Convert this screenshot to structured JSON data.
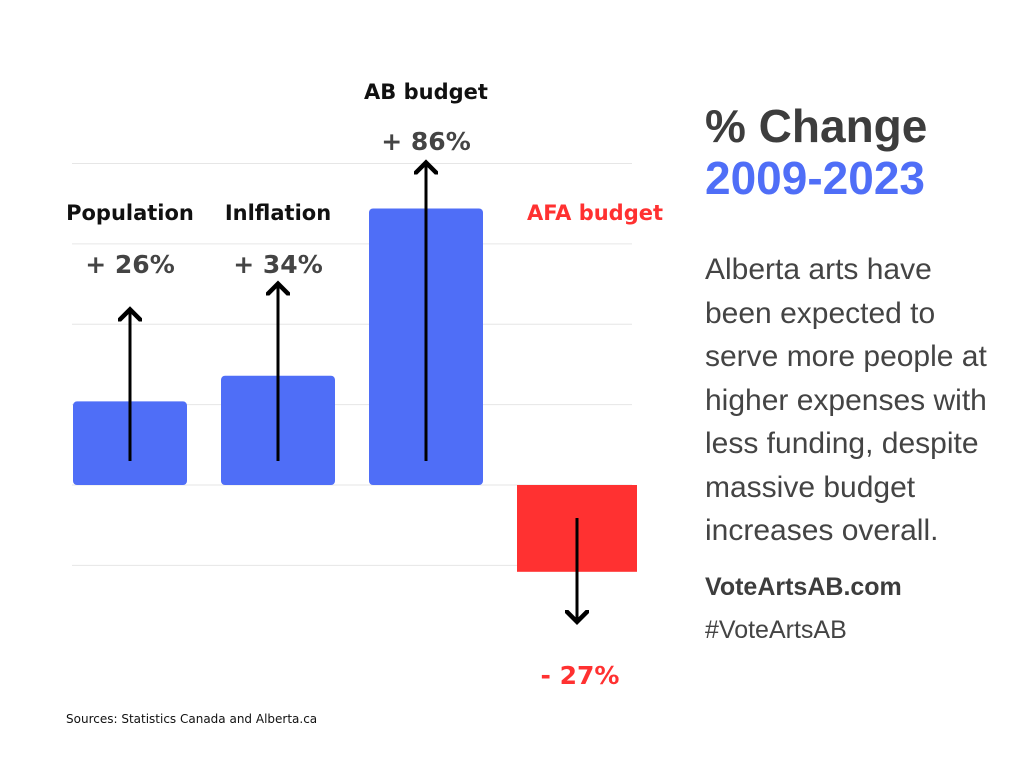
{
  "chart_data": {
    "type": "bar",
    "categories": [
      "Population",
      "Inlflation",
      "AB budget",
      "AFA budget"
    ],
    "values": [
      26,
      34,
      86,
      -27
    ],
    "value_labels": [
      "+ 26%",
      "+ 34%",
      "+ 86%",
      "- 27%"
    ],
    "ylim": [
      -50,
      100
    ],
    "grid": true,
    "colors": [
      "#4f6ef7",
      "#4f6ef7",
      "#4f6ef7",
      "#ff3131"
    ],
    "label_colors": [
      "#111111",
      "#111111",
      "#111111",
      "#ff3131"
    ],
    "value_label_colors": [
      "#444444",
      "#444444",
      "#444444",
      "#ff3131"
    ]
  },
  "title": {
    "line1": "% Change",
    "line2": "2009-2023"
  },
  "body_text": "Alberta arts have been expected to serve more people at higher expenses with less funding, despite  massive budget increases overall.",
  "website": "VoteArtsAB.com",
  "hashtag": "#VoteArtsAB",
  "sources": "Sources: Statistics Canada and Alberta.ca",
  "colors": {
    "accent_blue": "#4f6ef7",
    "accent_red": "#ff3131",
    "text_dark": "#3d3d3d"
  }
}
